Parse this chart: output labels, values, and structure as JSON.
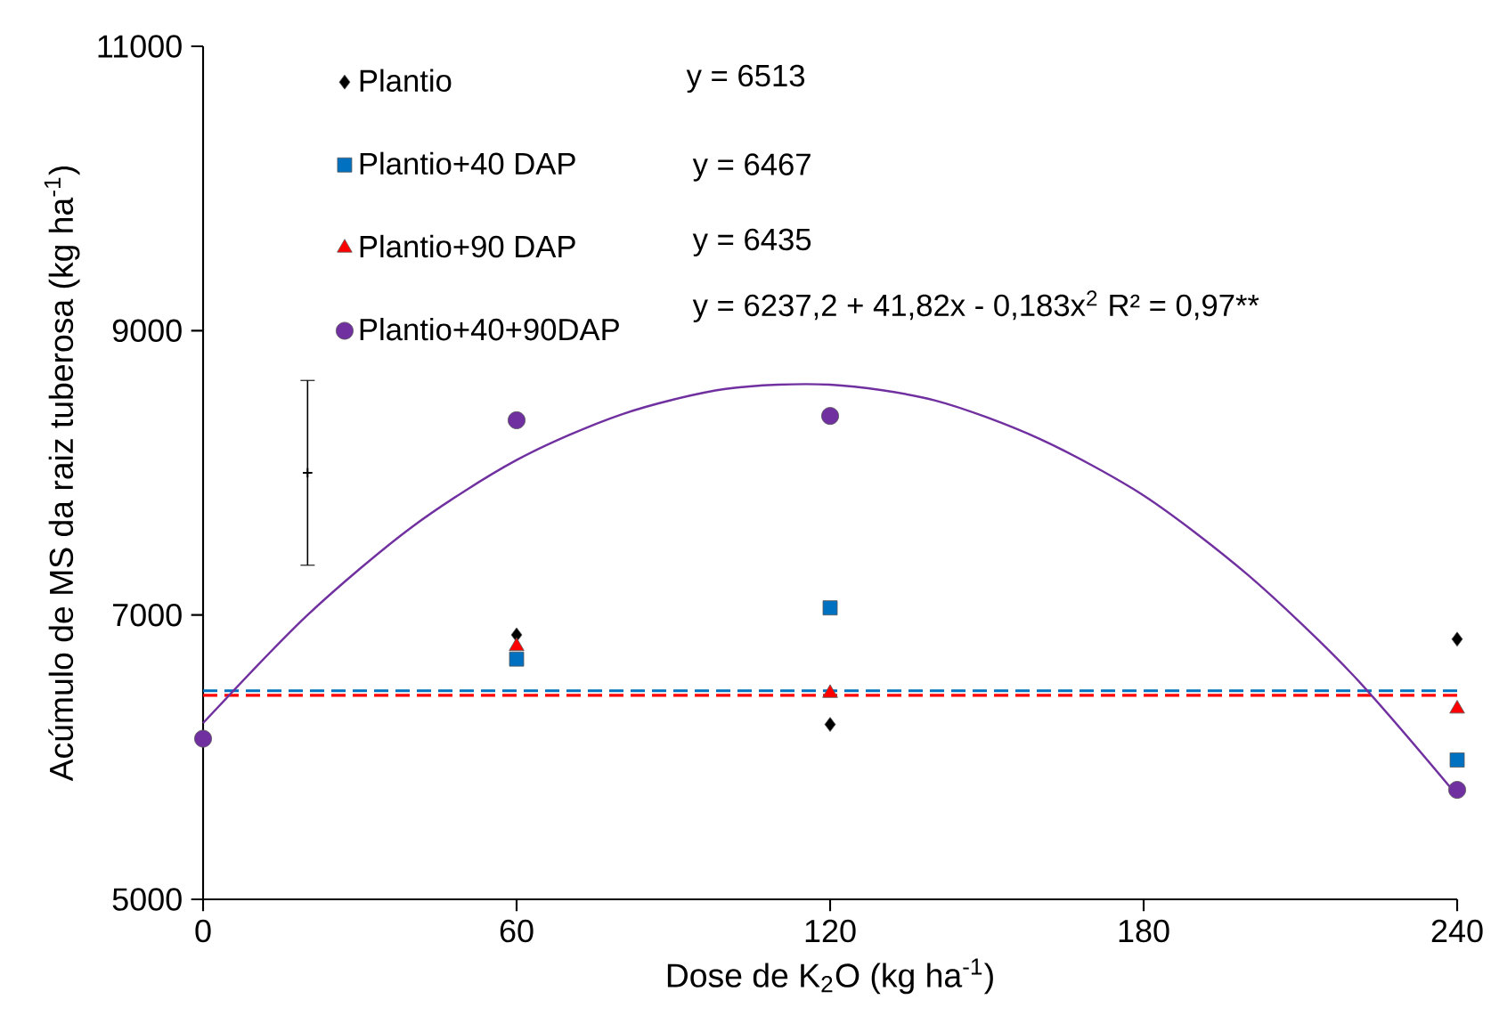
{
  "chart_data": {
    "type": "scatter",
    "xlabel": "Dose de K$_{2}$O (kg ha$^{-1}$)",
    "ylabel": "Acúmulo de MS da raiz tuberosa (kg ha$^{-1}$)",
    "x": [
      0,
      60,
      120,
      240
    ],
    "xlim": [
      0,
      240
    ],
    "xticks": [
      0,
      60,
      120,
      180,
      240
    ],
    "ylim": [
      5000,
      11000
    ],
    "yticks": [
      5000,
      7000,
      9000,
      11000
    ],
    "grid": false,
    "legend": "top left",
    "series": [
      {
        "name": "Plantio",
        "color": "#000000",
        "marker": "diamond",
        "values": [
          null,
          6860,
          6230,
          6830
        ]
      },
      {
        "name": "Plantio+40 DAP",
        "color": "#0070c0",
        "marker": "square",
        "values": [
          null,
          6690,
          7050,
          5980
        ]
      },
      {
        "name": "Plantio+90 DAP",
        "color": "#ff0000",
        "marker": "triangle",
        "values": [
          null,
          6780,
          6450,
          6340
        ]
      },
      {
        "name": "Plantio+40+90DAP",
        "color": "#7030a0",
        "marker": "circle",
        "values": [
          6130,
          8370,
          8400,
          5770
        ]
      },
      {
        "type": "line",
        "color": "#0070c0",
        "line_style": "dashed",
        "marker": "none",
        "x": [
          0,
          240
        ],
        "values": [
          6467,
          6467
        ]
      },
      {
        "type": "line",
        "color": "#ff0000",
        "line_style": "dashed",
        "marker": "none",
        "x": [
          0,
          240
        ],
        "values": [
          6435,
          6435
        ]
      },
      {
        "type": "line",
        "color": "#7030a0",
        "line_style": "solid",
        "marker": "none",
        "x": [
          0,
          20,
          40,
          60,
          80,
          100,
          120,
          140,
          160,
          180,
          200,
          220,
          240
        ],
        "values": [
          6240,
          7000,
          7620,
          8090,
          8410,
          8590,
          8620,
          8510,
          8240,
          7840,
          7280,
          6580,
          5730
        ]
      },
      {
        "type": "scatter",
        "color": "#000000",
        "marker": "cross",
        "x": [
          20
        ],
        "values": [
          8000
        ],
        "errors": [
          650
        ]
      }
    ],
    "annotations": [
      "y = 6513",
      "y = 6467",
      "y = 6435",
      "y =  6237,2 + 41,82x - 0,183x$^{2}$  R² = 0,97**"
    ]
  }
}
